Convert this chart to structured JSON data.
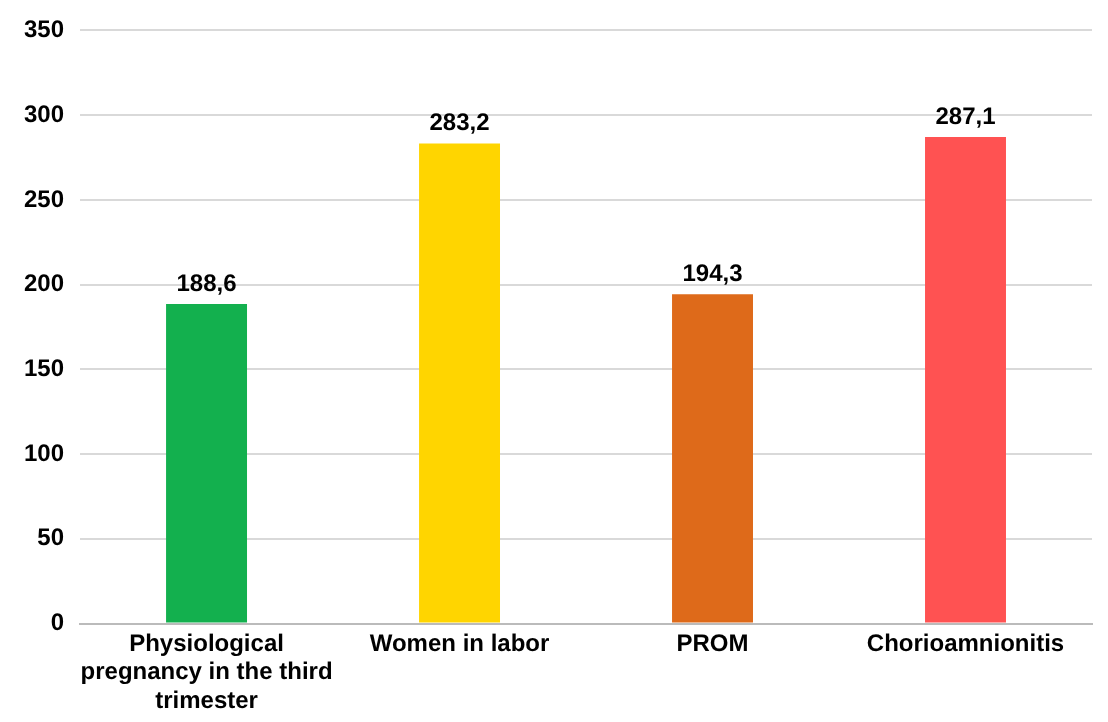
{
  "chart_data": {
    "type": "bar",
    "categories": [
      "Physiological pregnancy in the third trimester",
      "Women in labor",
      "PROM",
      "Chorioamnionitis"
    ],
    "values": [
      188.6,
      283.2,
      194.3,
      287.1
    ],
    "colors": [
      "#13b04e",
      "#ffd500",
      "#de6a1a",
      "#ff5252"
    ],
    "value_labels": [
      "188,6",
      "283,2",
      "194,3",
      "287,1"
    ],
    "ylim": [
      0,
      350
    ],
    "yticks": [
      0,
      50,
      100,
      150,
      200,
      250,
      300,
      350
    ],
    "grid": "y",
    "legend": false
  }
}
